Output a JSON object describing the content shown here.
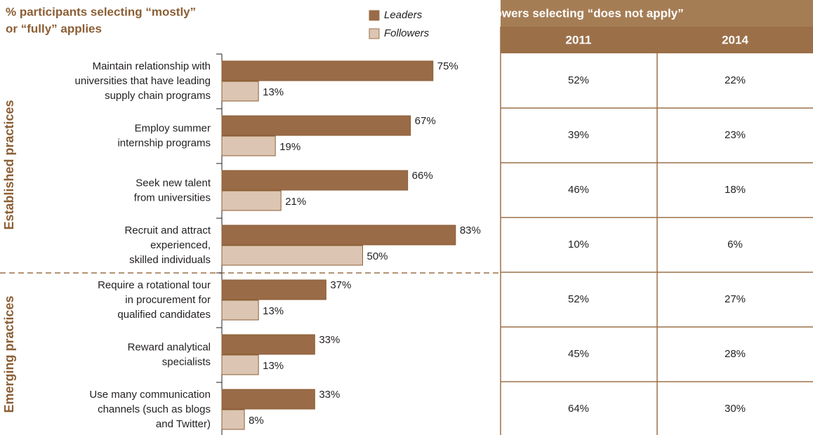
{
  "chart_data": {
    "type": "bar",
    "orientation": "horizontal",
    "title": [
      "% participants selecting “mostly”",
      "or “fully” applies"
    ],
    "categories": [
      [
        "Maintain relationship with",
        "universities that have leading",
        "supply chain programs"
      ],
      [
        "Employ summer",
        "internship programs"
      ],
      [
        "Seek new talent",
        "from universities"
      ],
      [
        "Recruit and attract",
        "experienced,",
        "skilled individuals"
      ],
      [
        "Require a rotational tour",
        "in procurement for",
        "qualified candidates"
      ],
      [
        "Reward analytical",
        "specialists"
      ],
      [
        "Use many communication",
        "channels (such as blogs",
        "and Twitter)"
      ]
    ],
    "groups": [
      "Established practices",
      "Emerging practices"
    ],
    "series": [
      {
        "name": "Leaders",
        "color": "#9a6b47",
        "values": [
          75,
          67,
          66,
          83,
          37,
          33,
          33
        ],
        "value_labels": [
          "75%",
          "67%",
          "66%",
          "83%",
          "37%",
          "33%",
          "33%"
        ]
      },
      {
        "name": "Followers",
        "color": "#dcc6b3",
        "values": [
          13,
          19,
          21,
          50,
          13,
          13,
          8
        ],
        "value_labels": [
          "13%",
          "19%",
          "21%",
          "50%",
          "13%",
          "13%",
          "8%"
        ]
      }
    ]
  },
  "table": {
    "title": "Followers selecting “does not apply”",
    "columns": [
      "2011",
      "2014"
    ],
    "rows": [
      [
        "52%",
        "22%"
      ],
      [
        "39%",
        "23%"
      ],
      [
        "46%",
        "18%"
      ],
      [
        "10%",
        "6%"
      ],
      [
        "52%",
        "27%"
      ],
      [
        "45%",
        "28%"
      ],
      [
        "64%",
        "30%"
      ]
    ]
  }
}
